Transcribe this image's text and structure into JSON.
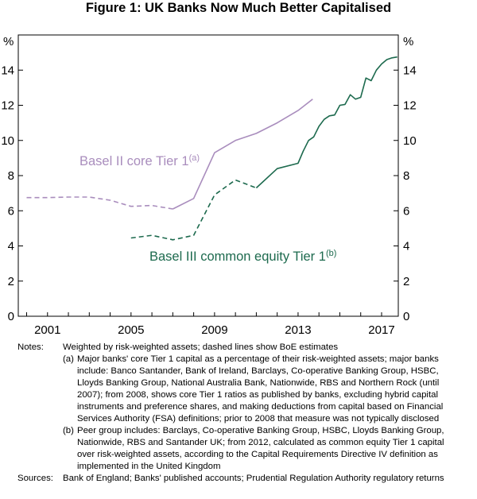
{
  "title": "Figure 1: UK Banks Now Much Better Capitalised",
  "chart_data": {
    "type": "line",
    "title": "Figure 1: UK Banks Now Much Better Capitalised",
    "ylabel_left": "%",
    "ylabel_right": "%",
    "ylim": [
      0,
      16
    ],
    "yticks": [
      0,
      2,
      4,
      6,
      8,
      10,
      12,
      14
    ],
    "xlim": [
      1999.6,
      2017.8
    ],
    "xticks": [
      2001,
      2005,
      2009,
      2013,
      2017
    ],
    "series": [
      {
        "name": "Basel II core Tier 1",
        "label_main": "Basel II core Tier 1",
        "label_sup": "(a)",
        "color": "#a98dbd",
        "segments": [
          {
            "style": "dashed",
            "x": [
              2000,
              2001,
              2002,
              2003,
              2004,
              2005,
              2006,
              2007
            ],
            "y": [
              6.75,
              6.75,
              6.78,
              6.78,
              6.6,
              6.25,
              6.3,
              6.1
            ]
          },
          {
            "style": "solid",
            "x": [
              2007,
              2008,
              2009,
              2010,
              2011,
              2012,
              2013,
              2013.7
            ],
            "y": [
              6.1,
              6.7,
              9.3,
              10.0,
              10.4,
              11.0,
              11.7,
              12.35
            ]
          }
        ]
      },
      {
        "name": "Basel III common equity Tier 1",
        "label_main": "Basel III common equity Tier 1",
        "label_sup": "(b)",
        "color": "#1d6a4e",
        "segments": [
          {
            "style": "dashed",
            "x": [
              2005,
              2006,
              2007,
              2008,
              2009,
              2010,
              2011
            ],
            "y": [
              4.45,
              4.6,
              4.35,
              4.6,
              6.9,
              7.75,
              7.3
            ]
          },
          {
            "style": "solid",
            "x": [
              2011,
              2012,
              2013,
              2013.25,
              2013.5,
              2013.75,
              2014,
              2014.25,
              2014.5,
              2014.75,
              2015,
              2015.25,
              2015.5,
              2015.75,
              2016,
              2016.25,
              2016.5,
              2016.75,
              2017,
              2017.25,
              2017.5,
              2017.75
            ],
            "y": [
              7.3,
              8.4,
              8.7,
              9.4,
              10.0,
              10.2,
              10.8,
              11.2,
              11.4,
              11.45,
              12.0,
              12.05,
              12.6,
              12.35,
              12.45,
              13.55,
              13.4,
              14.0,
              14.35,
              14.6,
              14.7,
              14.75
            ]
          }
        ]
      }
    ]
  },
  "notes": {
    "label": "Notes:",
    "intro": "Weighted by risk-weighted assets; dashed lines show BoE estimates",
    "a_marker": "(a)",
    "a_lines": [
      "Major banks' core Tier 1 capital as a percentage of their risk-weighted assets; major banks",
      "include: Banco Santander, Bank of Ireland, Barclays, Co-operative Banking Group, HSBC,",
      "Lloyds Banking Group, National Australia Bank, Nationwide, RBS and Northern Rock (until",
      "2007); from 2008, shows core Tier 1 ratios as published by banks, excluding hybrid capital",
      "instruments and preference shares, and making deductions from capital based on Financial",
      "Services Authority (FSA) definitions; prior to 2008 that measure was not typically disclosed"
    ],
    "b_marker": "(b)",
    "b_lines": [
      "Peer group includes: Barclays, Co-operative Banking Group, HSBC, Lloyds Banking Group,",
      "Nationwide, RBS and Santander UK; from 2012, calculated as common equity Tier 1 capital",
      "over risk-weighted assets, according to the Capital Requirements Directive IV definition as",
      "implemented in the United Kingdom"
    ]
  },
  "sources": {
    "label": "Sources:",
    "text": "Bank of England; Banks' published accounts; Prudential Regulation Authority regulatory returns"
  }
}
